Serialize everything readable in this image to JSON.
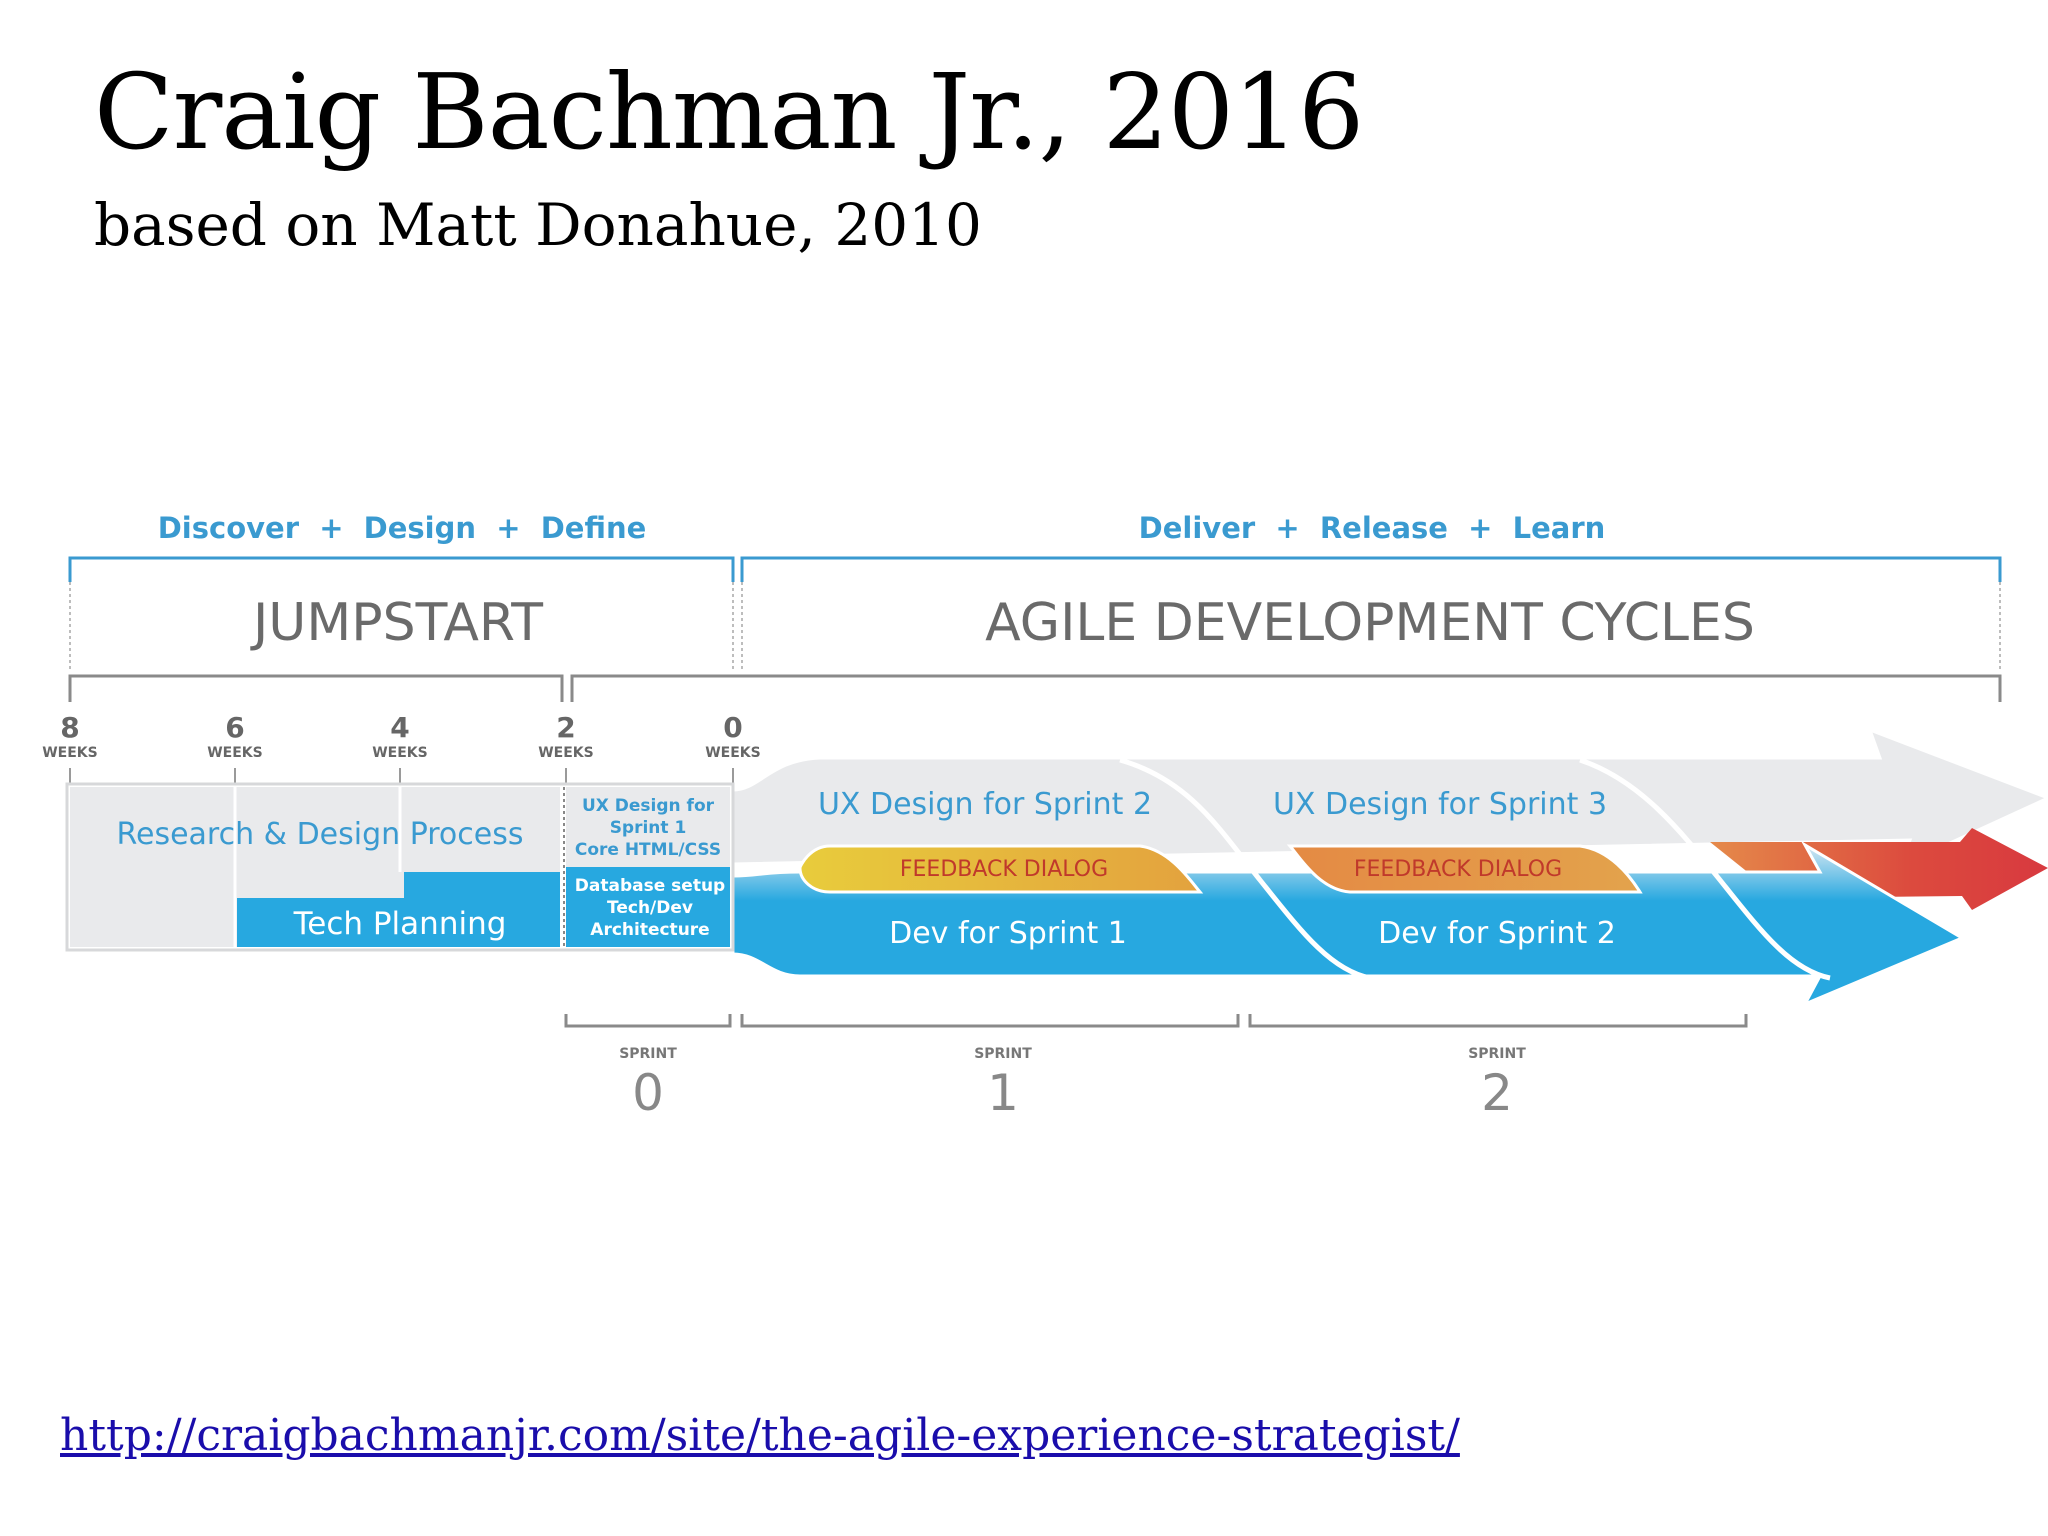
{
  "slide": {
    "title": "Craig Bachman Jr., 2016",
    "subtitle": "based on Matt Donahue, 2010",
    "link": "http://craigbachmanjr.com/site/the-agile-experience-strategist/"
  },
  "diagram": {
    "phase_headers": {
      "left": "Discover  +  Design  +  Define",
      "right": "Deliver  +  Release  +  Learn"
    },
    "phases": {
      "jumpstart": "JUMPSTART",
      "agile": "AGILE DEVELOPMENT CYCLES"
    },
    "week_markers": [
      {
        "value": "8",
        "unit": "WEEKS"
      },
      {
        "value": "6",
        "unit": "WEEKS"
      },
      {
        "value": "4",
        "unit": "WEEKS"
      },
      {
        "value": "2",
        "unit": "WEEKS"
      },
      {
        "value": "0",
        "unit": "WEEKS"
      }
    ],
    "blocks": {
      "research": "Research & Design Process",
      "tech_planning": "Tech Planning",
      "ux_sprint1_line1": "UX Design for",
      "ux_sprint1_line2": "Sprint 1",
      "ux_sprint1_line3": "Core HTML/CSS",
      "db_line1": "Database setup",
      "db_line2": "Tech/Dev",
      "db_line3": "Architecture"
    },
    "streams": {
      "ux_sprint2": "UX Design for Sprint 2",
      "ux_sprint3": "UX Design for Sprint 3",
      "feedback1": "FEEDBACK DIALOG",
      "feedback2": "FEEDBACK DIALOG",
      "dev_sprint1": "Dev for Sprint 1",
      "dev_sprint2": "Dev for Sprint 2"
    },
    "sprints": [
      {
        "label": "SPRINT",
        "number": "0"
      },
      {
        "label": "SPRINT",
        "number": "1"
      },
      {
        "label": "SPRINT",
        "number": "2"
      }
    ],
    "colors": {
      "header_blue": "#3a9ad0",
      "light_gray": "#e9eaec",
      "dev_blue": "#27a8e0",
      "feedback_yellow": "#e8c23a",
      "feedback_orange": "#e28a43",
      "red_arrow": "#d8393f",
      "gray_text": "#6a6a6a"
    }
  }
}
